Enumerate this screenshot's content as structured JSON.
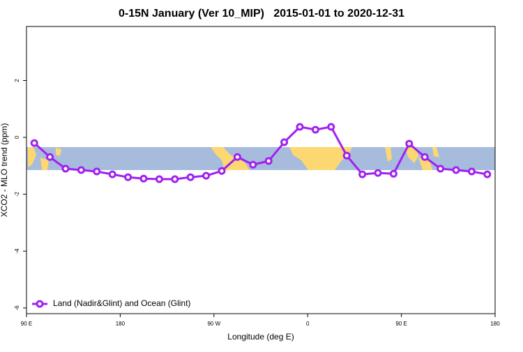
{
  "chart_data": {
    "type": "line",
    "title": "0-15N January (Ver 10_MIP)   2015-01-01 to 2020-12-31",
    "x_label": "Longitude (deg E)",
    "y_label": "XCO2 - MLO trend (ppm)",
    "x": [
      97.5,
      112.5,
      127.5,
      142.5,
      157.5,
      172.5,
      187.5,
      202.5,
      217.5,
      232.5,
      247.5,
      262.5,
      277.5,
      292.5,
      307.5,
      322.5,
      337.5,
      352.5,
      367.5,
      382.5,
      397.5,
      412.5,
      427.5,
      442.5,
      457.5,
      472.5,
      487.5,
      502.5,
      517.5,
      532.5
    ],
    "series": [
      {
        "name": "Land (Nadir&Glint) and Ocean (Glint)",
        "color": "#a020f0",
        "values": [
          -0.2,
          -0.69,
          -1.1,
          -1.15,
          -1.2,
          -1.3,
          -1.4,
          -1.45,
          -1.47,
          -1.47,
          -1.4,
          -1.35,
          -1.18,
          -0.69,
          -0.96,
          -0.83,
          -0.17,
          0.37,
          0.27,
          0.37,
          -0.64,
          -1.3,
          -1.25,
          -1.28,
          -0.22,
          -0.69,
          -1.1,
          -1.15,
          -1.2,
          -1.3
        ]
      }
    ],
    "xlim": [
      90,
      540
    ],
    "xticks": [
      {
        "value": 90,
        "label": "90 E"
      },
      180,
      {
        "value": 270,
        "label": "90 W"
      },
      {
        "value": 360,
        "label": "0"
      },
      {
        "value": 450,
        "label": "90 E"
      },
      {
        "value": 540,
        "label": "180"
      }
    ],
    "ylim": [
      -6.2,
      3.9
    ],
    "yticks": [
      -6,
      -4,
      -2,
      0,
      2
    ],
    "legend": "lower left"
  }
}
